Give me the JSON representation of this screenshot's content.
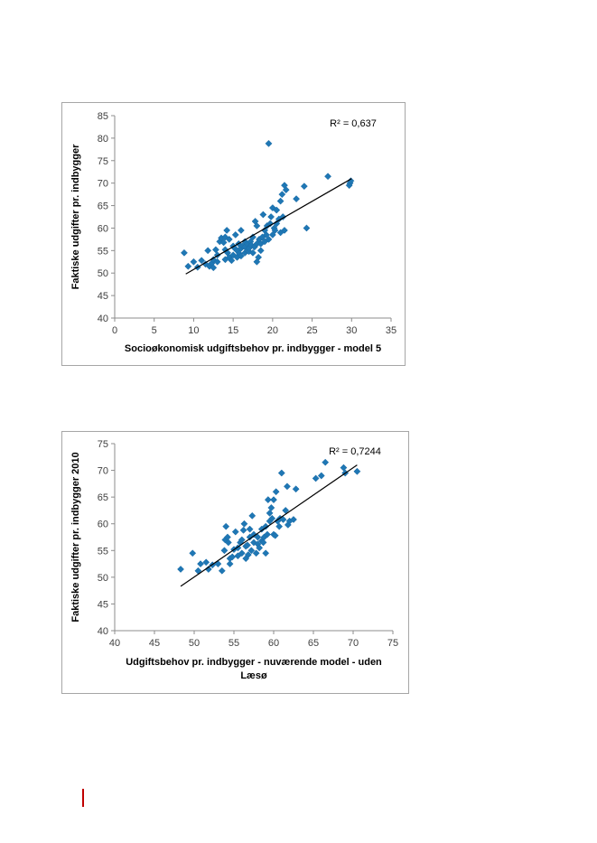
{
  "chart_data": [
    {
      "type": "scatter",
      "title": "",
      "xlabel": "Socioøkonomisk udgiftsbehov pr. indbygger - model 5",
      "ylabel": "Faktiske udgifter pr. indbygger",
      "annotation": "R² = 0,637",
      "xlim": [
        0,
        35
      ],
      "ylim": [
        40,
        85
      ],
      "xticks": [
        0,
        5,
        10,
        15,
        20,
        25,
        30,
        35
      ],
      "yticks": [
        40,
        45,
        50,
        55,
        60,
        65,
        70,
        75,
        80,
        85
      ],
      "trendline": [
        [
          9.0,
          49.8
        ],
        [
          30.0,
          71.0
        ]
      ],
      "points": [
        [
          8.8,
          54.5
        ],
        [
          9.3,
          51.5
        ],
        [
          10.0,
          52.5
        ],
        [
          10.5,
          51.3
        ],
        [
          11.0,
          52.8
        ],
        [
          11.5,
          52.0
        ],
        [
          11.8,
          55.0
        ],
        [
          12.0,
          51.5
        ],
        [
          12.3,
          52.2
        ],
        [
          12.5,
          53.0
        ],
        [
          12.5,
          51.2
        ],
        [
          12.8,
          55.2
        ],
        [
          13.0,
          52.5
        ],
        [
          13.0,
          54.0
        ],
        [
          13.3,
          57.0
        ],
        [
          13.5,
          57.8
        ],
        [
          13.8,
          56.8
        ],
        [
          14.0,
          53.0
        ],
        [
          14.0,
          55.2
        ],
        [
          14.0,
          58.0
        ],
        [
          14.2,
          59.5
        ],
        [
          14.3,
          54.5
        ],
        [
          14.5,
          53.5
        ],
        [
          14.5,
          57.5
        ],
        [
          14.8,
          52.8
        ],
        [
          15.0,
          54.0
        ],
        [
          15.0,
          56.0
        ],
        [
          15.2,
          55.5
        ],
        [
          15.3,
          58.5
        ],
        [
          15.5,
          53.5
        ],
        [
          15.5,
          55.0
        ],
        [
          15.7,
          56.5
        ],
        [
          15.8,
          54.3
        ],
        [
          16.0,
          53.8
        ],
        [
          16.0,
          55.5
        ],
        [
          16.0,
          59.5
        ],
        [
          16.2,
          56.0
        ],
        [
          16.5,
          54.5
        ],
        [
          16.5,
          55.8
        ],
        [
          16.5,
          57.0
        ],
        [
          16.8,
          55.0
        ],
        [
          16.8,
          56.5
        ],
        [
          17.0,
          54.8
        ],
        [
          17.0,
          55.5
        ],
        [
          17.2,
          57.0
        ],
        [
          17.3,
          56.2
        ],
        [
          17.5,
          54.5
        ],
        [
          17.5,
          58.0
        ],
        [
          17.7,
          55.8
        ],
        [
          17.8,
          61.5
        ],
        [
          18.0,
          56.5
        ],
        [
          18.0,
          52.5
        ],
        [
          18.0,
          60.5
        ],
        [
          18.2,
          53.5
        ],
        [
          18.3,
          57.5
        ],
        [
          18.5,
          55.0
        ],
        [
          18.5,
          56.5
        ],
        [
          18.7,
          58.0
        ],
        [
          18.8,
          63.0
        ],
        [
          19.0,
          57.0
        ],
        [
          19.0,
          59.5
        ],
        [
          19.2,
          58.5
        ],
        [
          19.3,
          60.5
        ],
        [
          19.5,
          78.8
        ],
        [
          19.5,
          57.5
        ],
        [
          19.7,
          61.0
        ],
        [
          19.8,
          62.5
        ],
        [
          20.0,
          58.5
        ],
        [
          20.0,
          64.5
        ],
        [
          20.2,
          60.0
        ],
        [
          20.3,
          59.5
        ],
        [
          20.5,
          61.0
        ],
        [
          20.5,
          64.0
        ],
        [
          20.8,
          62.0
        ],
        [
          21.0,
          59.0
        ],
        [
          21.0,
          66.0
        ],
        [
          21.2,
          67.5
        ],
        [
          21.3,
          62.5
        ],
        [
          21.5,
          69.5
        ],
        [
          21.5,
          59.5
        ],
        [
          21.7,
          68.5
        ],
        [
          23.0,
          66.5
        ],
        [
          24.0,
          69.3
        ],
        [
          24.3,
          60.0
        ],
        [
          27.0,
          71.5
        ],
        [
          29.7,
          69.5
        ],
        [
          29.8,
          70.0
        ],
        [
          29.9,
          70.5
        ]
      ]
    },
    {
      "type": "scatter",
      "title": "",
      "xlabel": "Udgiftsbehov pr. indbygger - nuværende model - uden Læsø",
      "ylabel": "Faktiske udgifter pr. indbygger 2010",
      "annotation": "R² = 0,7244",
      "xlim": [
        40,
        75
      ],
      "ylim": [
        40,
        75
      ],
      "xticks": [
        40,
        45,
        50,
        55,
        60,
        65,
        70,
        75
      ],
      "yticks": [
        40,
        45,
        50,
        55,
        60,
        65,
        70,
        75
      ],
      "trendline": [
        [
          48.3,
          48.3
        ],
        [
          70.5,
          71.0
        ]
      ],
      "points": [
        [
          48.3,
          51.5
        ],
        [
          49.8,
          54.5
        ],
        [
          50.5,
          51.2
        ],
        [
          50.8,
          52.5
        ],
        [
          51.5,
          52.8
        ],
        [
          51.8,
          51.5
        ],
        [
          52.3,
          52.3
        ],
        [
          53.0,
          52.5
        ],
        [
          53.5,
          51.2
        ],
        [
          53.8,
          55.0
        ],
        [
          53.9,
          57.0
        ],
        [
          54.0,
          59.5
        ],
        [
          54.2,
          57.5
        ],
        [
          54.3,
          56.5
        ],
        [
          54.5,
          52.5
        ],
        [
          54.5,
          53.5
        ],
        [
          54.8,
          53.8
        ],
        [
          55.0,
          55.2
        ],
        [
          55.2,
          58.5
        ],
        [
          55.5,
          54.0
        ],
        [
          55.5,
          55.5
        ],
        [
          55.8,
          56.5
        ],
        [
          56.0,
          54.5
        ],
        [
          56.0,
          57.0
        ],
        [
          56.2,
          58.8
        ],
        [
          56.3,
          60.0
        ],
        [
          56.5,
          53.5
        ],
        [
          56.5,
          55.8
        ],
        [
          56.7,
          56.0
        ],
        [
          56.8,
          54.2
        ],
        [
          57.0,
          57.5
        ],
        [
          57.0,
          59.0
        ],
        [
          57.2,
          55.0
        ],
        [
          57.3,
          61.5
        ],
        [
          57.5,
          56.5
        ],
        [
          57.5,
          58.0
        ],
        [
          57.8,
          54.5
        ],
        [
          58.0,
          56.2
        ],
        [
          58.0,
          57.5
        ],
        [
          58.2,
          55.5
        ],
        [
          58.5,
          56.8
        ],
        [
          58.5,
          59.0
        ],
        [
          58.7,
          56.5
        ],
        [
          58.8,
          57.5
        ],
        [
          59.0,
          54.5
        ],
        [
          59.0,
          59.5
        ],
        [
          59.2,
          58.0
        ],
        [
          59.3,
          64.5
        ],
        [
          59.5,
          62.0
        ],
        [
          59.5,
          60.5
        ],
        [
          59.7,
          63.0
        ],
        [
          59.8,
          61.0
        ],
        [
          60.0,
          58.0
        ],
        [
          60.0,
          64.5
        ],
        [
          60.2,
          57.8
        ],
        [
          60.3,
          66.0
        ],
        [
          60.5,
          60.5
        ],
        [
          60.7,
          59.5
        ],
        [
          60.8,
          61.0
        ],
        [
          61.0,
          69.5
        ],
        [
          61.2,
          60.8
        ],
        [
          61.5,
          62.5
        ],
        [
          61.7,
          67.0
        ],
        [
          61.8,
          59.8
        ],
        [
          62.0,
          60.5
        ],
        [
          62.5,
          60.8
        ],
        [
          62.8,
          66.5
        ],
        [
          65.3,
          68.5
        ],
        [
          66.0,
          69.0
        ],
        [
          66.5,
          71.5
        ],
        [
          68.8,
          70.5
        ],
        [
          69.0,
          69.5
        ],
        [
          70.5,
          69.8
        ]
      ]
    }
  ]
}
